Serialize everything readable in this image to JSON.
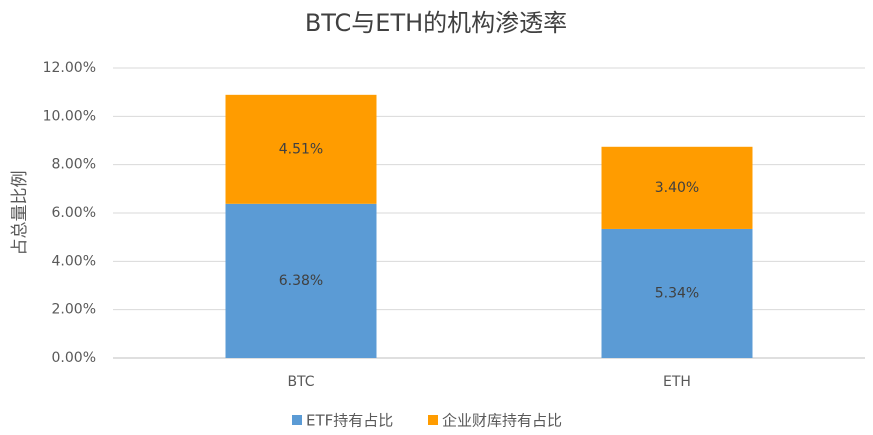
{
  "chart_data": {
    "type": "stacked_bar",
    "title": "BTC与ETH的机构渗透率",
    "y_label": "占总量比例",
    "categories": [
      "BTC",
      "ETH"
    ],
    "series": [
      {
        "name": "ETF持有占比",
        "color": "#5b9bd5",
        "values": [
          6.38,
          5.34
        ],
        "value_labels": [
          "6.38%",
          "5.34%"
        ]
      },
      {
        "name": "企业财库持有占比",
        "color": "#ff9c00",
        "values": [
          4.51,
          3.4
        ],
        "value_labels": [
          "4.51%",
          "3.40%"
        ]
      }
    ],
    "ylim": [
      0,
      12
    ],
    "yticks": [
      {
        "value": 0,
        "label": "0.00%"
      },
      {
        "value": 2,
        "label": "2.00%"
      },
      {
        "value": 4,
        "label": "4.00%"
      },
      {
        "value": 6,
        "label": "6.00%"
      },
      {
        "value": 8,
        "label": "8.00%"
      },
      {
        "value": 10,
        "label": "10.00%"
      },
      {
        "value": 12,
        "label": "12.00%"
      }
    ],
    "grid": true,
    "legend": "bottom"
  }
}
